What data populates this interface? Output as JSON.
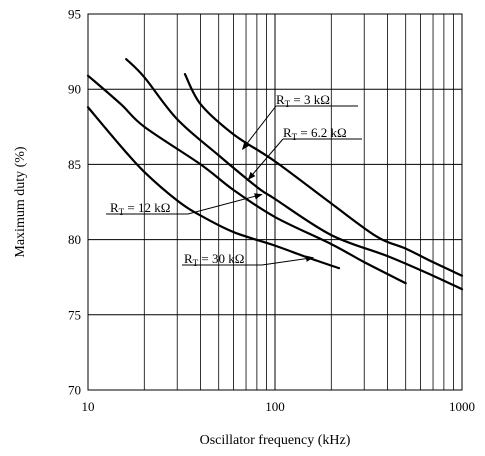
{
  "chart_data": {
    "type": "line",
    "title": "",
    "xlabel": "Oscillator frequency (kHz)",
    "ylabel": "Maximum duty (%)",
    "xscale": "log",
    "xlim": [
      10,
      1000
    ],
    "ylim": [
      70,
      95
    ],
    "grid": true,
    "x_ticks": [
      10,
      100,
      1000
    ],
    "x_tick_labels": [
      "10",
      "100",
      "1000"
    ],
    "y_ticks": [
      70,
      75,
      80,
      85,
      90,
      95
    ],
    "y_tick_labels": [
      "70",
      "75",
      "80",
      "85",
      "90",
      "95"
    ],
    "colors": {
      "line": "#000000",
      "grid": "#000000",
      "background": "#ffffff"
    },
    "series": [
      {
        "name": "R_T = 3 kΩ",
        "points": [
          [
            33,
            91
          ],
          [
            40,
            89
          ],
          [
            60,
            87
          ],
          [
            100,
            85.2
          ],
          [
            200,
            82.4
          ],
          [
            350,
            80.2
          ],
          [
            500,
            79.4
          ],
          [
            700,
            78.5
          ],
          [
            1000,
            77.6
          ]
        ]
      },
      {
        "name": "R_T = 6.2 kΩ",
        "points": [
          [
            16,
            92
          ],
          [
            20,
            90.8
          ],
          [
            30,
            88
          ],
          [
            50,
            85.6
          ],
          [
            80,
            83.5
          ],
          [
            100,
            82.7
          ],
          [
            200,
            80.3
          ],
          [
            400,
            78.9
          ],
          [
            700,
            77.6
          ],
          [
            1000,
            76.7
          ]
        ]
      },
      {
        "name": "R_T = 12 kΩ",
        "points": [
          [
            10,
            90.9
          ],
          [
            15,
            89
          ],
          [
            20,
            87.5
          ],
          [
            40,
            85
          ],
          [
            60,
            83.3
          ],
          [
            100,
            81.5
          ],
          [
            200,
            79.7
          ],
          [
            300,
            78.5
          ],
          [
            500,
            77.1
          ]
        ]
      },
      {
        "name": "R_T = 30 kΩ",
        "points": [
          [
            10,
            88.8
          ],
          [
            15,
            86.2
          ],
          [
            20,
            84.5
          ],
          [
            30,
            82.6
          ],
          [
            40,
            81.6
          ],
          [
            60,
            80.5
          ],
          [
            100,
            79.6
          ],
          [
            150,
            78.8
          ],
          [
            220,
            78.1
          ]
        ]
      }
    ],
    "annotations": [
      {
        "base": "R",
        "sub": "T",
        "rest": " = 3 kΩ",
        "anchor": [
          67,
          86
        ]
      },
      {
        "base": "R",
        "sub": "T",
        "rest": " = 6.2 kΩ",
        "anchor": [
          72,
          84
        ]
      },
      {
        "base": "R",
        "sub": "T",
        "rest": " = 12 kΩ",
        "anchor": [
          85,
          83
        ]
      },
      {
        "base": "R",
        "sub": "T",
        "rest": " = 30 kΩ",
        "anchor": [
          160,
          78.8
        ]
      }
    ]
  }
}
